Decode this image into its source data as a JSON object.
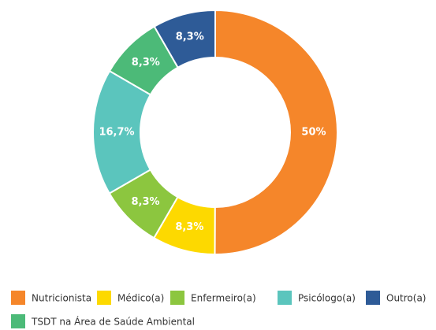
{
  "chart_data": {
    "type": "donut",
    "categories": [
      "Nutricionista",
      "Médico(a)",
      "Enfermeiro(a)",
      "Psicólogo(a)",
      "TSDT na Área de Saúde Ambiental",
      "Outro(a)"
    ],
    "values": [
      50,
      8.3,
      8.3,
      16.7,
      8.3,
      8.3
    ],
    "value_labels": [
      "50%",
      "8,3%",
      "8,3%",
      "16,7%",
      "8,3%",
      "8,3%"
    ],
    "colors": [
      "#f5862a",
      "#fdd900",
      "#8cc63f",
      "#5bc5bd",
      "#4cba78",
      "#2e5b97"
    ]
  }
}
